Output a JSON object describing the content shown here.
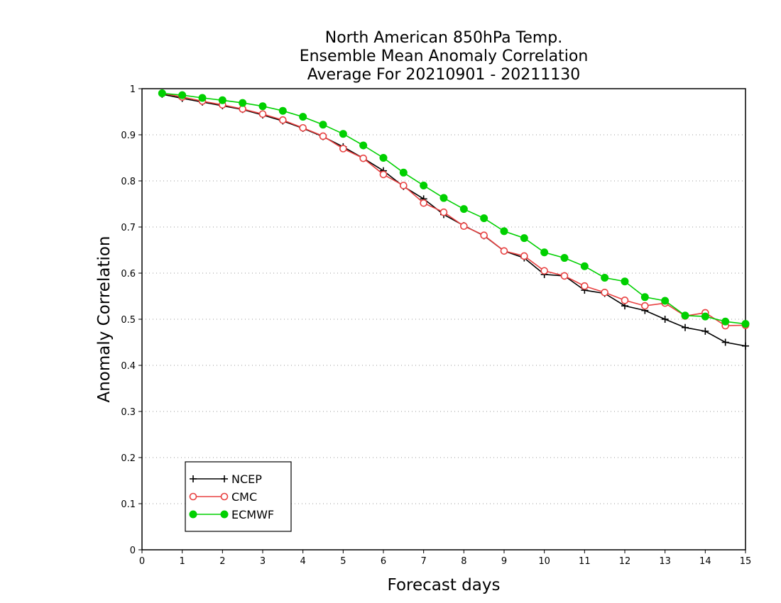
{
  "chart_data": {
    "type": "line",
    "title": [
      "North American 850hPa Temp.",
      "Ensemble Mean Anomaly Correlation",
      "Average For 20210901 - 20211130"
    ],
    "xlabel": "Forecast days",
    "ylabel": "Anomaly Correlation",
    "xlim": [
      0,
      15
    ],
    "ylim": [
      0,
      1
    ],
    "xticks": [
      "0",
      "1",
      "2",
      "3",
      "4",
      "5",
      "6",
      "7",
      "8",
      "9",
      "10",
      "11",
      "12",
      "13",
      "14",
      "15"
    ],
    "yticks": [
      "0",
      "0.1",
      "0.2",
      "0.3",
      "0.4",
      "0.5",
      "0.6",
      "0.7",
      "0.8",
      "0.9",
      "1"
    ],
    "grid": "dotted horizontal",
    "legend_position": "bottom-left",
    "x": [
      0.5,
      1,
      1.5,
      2,
      2.5,
      3,
      3.5,
      4,
      4.5,
      5,
      5.5,
      6,
      6.5,
      7,
      7.5,
      8,
      8.5,
      9,
      9.5,
      10,
      10.5,
      11,
      11.5,
      12,
      12.5,
      13,
      13.5,
      14,
      14.5,
      15
    ],
    "series": [
      {
        "name": "NCEP",
        "color": "#000000",
        "marker": "plus",
        "values": [
          0.988,
          0.979,
          0.971,
          0.963,
          0.955,
          0.943,
          0.93,
          0.914,
          0.896,
          0.874,
          0.849,
          0.822,
          0.788,
          0.761,
          0.727,
          0.703,
          0.681,
          0.648,
          0.633,
          0.597,
          0.594,
          0.563,
          0.556,
          0.529,
          0.519,
          0.5,
          0.482,
          0.474,
          0.45,
          0.442
        ]
      },
      {
        "name": "CMC",
        "color": "#e84040",
        "marker": "open-circle",
        "values": [
          0.99,
          0.982,
          0.973,
          0.965,
          0.956,
          0.945,
          0.932,
          0.915,
          0.897,
          0.87,
          0.849,
          0.814,
          0.79,
          0.752,
          0.732,
          0.702,
          0.682,
          0.648,
          0.637,
          0.605,
          0.594,
          0.572,
          0.558,
          0.541,
          0.529,
          0.535,
          0.507,
          0.514,
          0.486,
          0.487
        ]
      },
      {
        "name": "ECMWF",
        "color": "#00d000",
        "marker": "filled-circle",
        "values": [
          0.99,
          0.986,
          0.98,
          0.975,
          0.969,
          0.962,
          0.952,
          0.939,
          0.922,
          0.902,
          0.877,
          0.85,
          0.818,
          0.79,
          0.763,
          0.739,
          0.719,
          0.691,
          0.676,
          0.645,
          0.633,
          0.615,
          0.59,
          0.582,
          0.548,
          0.54,
          0.508,
          0.506,
          0.495,
          0.49
        ]
      }
    ]
  }
}
